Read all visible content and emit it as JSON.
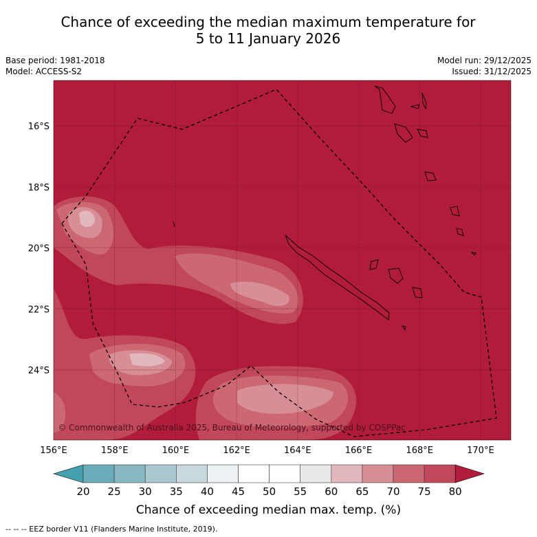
{
  "title": {
    "line1": "Chance of exceeding the median maximum temperature for",
    "line2": "5 to 11 January 2026"
  },
  "meta": {
    "base_period": "Base period: 1981-2018",
    "model": "Model: ACCESS-S2",
    "model_run": "Model run: 29/12/2025",
    "issued": "Issued: 31/12/2025"
  },
  "map": {
    "lon_ticks": [
      "156°E",
      "158°E",
      "160°E",
      "162°E",
      "164°E",
      "166°E",
      "168°E",
      "170°E"
    ],
    "lat_ticks": [
      "16°S",
      "18°S",
      "20°S",
      "22°S",
      "24°S"
    ],
    "copyright": "© Commonwealth of Australia 2025, Bureau of Meteorology, supported by COSPPac"
  },
  "colorbar": {
    "labels": [
      "20",
      "25",
      "30",
      "35",
      "40",
      "45",
      "50",
      "55",
      "60",
      "65",
      "70",
      "75",
      "80"
    ],
    "colors": [
      "#6aacba",
      "#89b8c3",
      "#a9c7cc",
      "#c9d8dc",
      "#ecf1f3",
      "#ffffff",
      "#ffffff",
      "#e9e9e9",
      "#e2b8be",
      "#d78e96",
      "#cb6872",
      "#c0485a"
    ],
    "under_color": "#45a0b0",
    "over_color": "#b01c3a",
    "title": "Chance of exceeding median max. temp. (%)"
  },
  "footer": "--  --  -- EEZ border V11 (Flanders Marine Institute, 2019)."
}
